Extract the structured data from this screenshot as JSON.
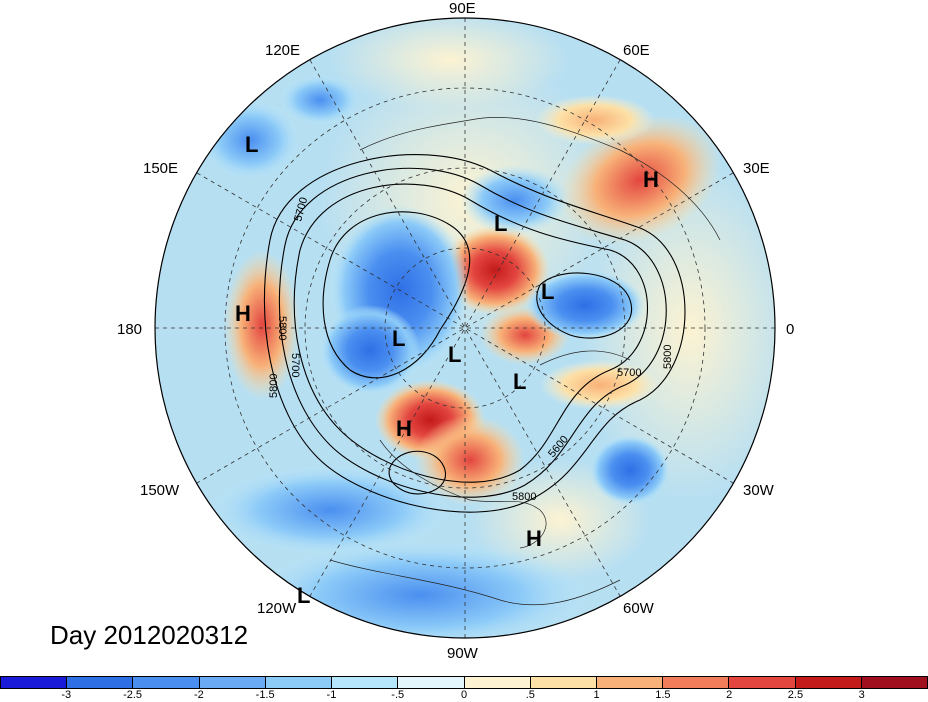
{
  "title": "Day 2012020312",
  "longitude_labels": {
    "e90": "90E",
    "e60": "60E",
    "e30": "30E",
    "e0": "0",
    "w30": "30W",
    "w60": "60W",
    "w90": "90W",
    "w120": "120W",
    "w150": "150W",
    "e180": "180",
    "e150": "150E",
    "e120": "120E"
  },
  "contour_labels": [
    "5700",
    "5800",
    "5700",
    "5800",
    "5600",
    "5800",
    "5700",
    "5800"
  ],
  "pressure_centers": [
    "L",
    "L",
    "L",
    "L",
    "L",
    "L",
    "L",
    "H",
    "H",
    "H",
    "H"
  ],
  "colorbar": {
    "ticks": [
      "-3",
      "-2.5",
      "-2",
      "-1.5",
      "-1",
      "-.5",
      "0",
      ".5",
      "1",
      "1.5",
      "2",
      "2.5",
      "3"
    ],
    "colors": [
      "#1a1ad9",
      "#2f6fe6",
      "#4a8ff0",
      "#6aaaf4",
      "#8ccaf8",
      "#b6e6fb",
      "#e2f6fb",
      "#fdf3d2",
      "#fde0a6",
      "#f8b178",
      "#f17d5a",
      "#e3453f",
      "#c31a1a",
      "#a00f1e"
    ]
  },
  "colors": {
    "background": "#ffffff",
    "ocean_base": "#b7dff2",
    "outline": "#000000"
  }
}
